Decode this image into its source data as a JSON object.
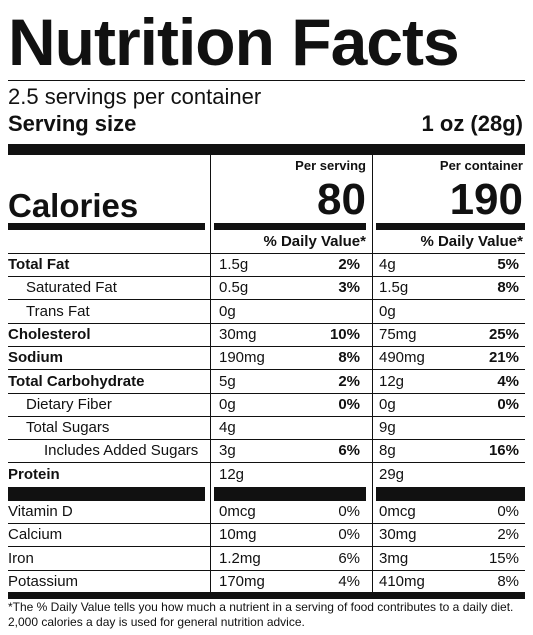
{
  "title": "Nutrition Facts",
  "servings_per_container": "2.5 servings per container",
  "serving_size_label": "Serving size",
  "serving_size_value": "1 oz (28g)",
  "per_serving_label": "Per serving",
  "per_container_label": "Per container",
  "calories_label": "Calories",
  "calories_per_serving": "80",
  "calories_per_container": "190",
  "daily_value_header": "% Daily Value*",
  "nutrients": [
    {
      "name": "Total Fat",
      "bold": true,
      "indent": 0,
      "serving_amt": "1.5g",
      "serving_pct": "2%",
      "container_amt": "4g",
      "container_pct": "5%"
    },
    {
      "name": "Saturated Fat",
      "bold": false,
      "indent": 1,
      "serving_amt": "0.5g",
      "serving_pct": "3%",
      "container_amt": "1.5g",
      "container_pct": "8%"
    },
    {
      "name": "Trans Fat",
      "bold": false,
      "indent": 1,
      "serving_amt": "0g",
      "serving_pct": "",
      "container_amt": "0g",
      "container_pct": ""
    },
    {
      "name": "Cholesterol",
      "bold": true,
      "indent": 0,
      "serving_amt": "30mg",
      "serving_pct": "10%",
      "container_amt": "75mg",
      "container_pct": "25%"
    },
    {
      "name": "Sodium",
      "bold": true,
      "indent": 0,
      "serving_amt": "190mg",
      "serving_pct": "8%",
      "container_amt": "490mg",
      "container_pct": "21%"
    },
    {
      "name": "Total Carbohydrate",
      "bold": true,
      "indent": 0,
      "serving_amt": "5g",
      "serving_pct": "2%",
      "container_amt": "12g",
      "container_pct": "4%"
    },
    {
      "name": "Dietary Fiber",
      "bold": false,
      "indent": 1,
      "serving_amt": "0g",
      "serving_pct": "0%",
      "container_amt": "0g",
      "container_pct": "0%"
    },
    {
      "name": "Total Sugars",
      "bold": false,
      "indent": 1,
      "serving_amt": "4g",
      "serving_pct": "",
      "container_amt": "9g",
      "container_pct": ""
    },
    {
      "name": "Includes Added Sugars",
      "bold": false,
      "indent": 2,
      "serving_amt": "3g",
      "serving_pct": "6%",
      "container_amt": "8g",
      "container_pct": "16%"
    },
    {
      "name": "Protein",
      "bold": true,
      "indent": 0,
      "serving_amt": "12g",
      "serving_pct": "",
      "container_amt": "29g",
      "container_pct": ""
    }
  ],
  "vitamins": [
    {
      "name": "Vitamin D",
      "serving_amt": "0mcg",
      "serving_pct": "0%",
      "container_amt": "0mcg",
      "container_pct": "0%"
    },
    {
      "name": "Calcium",
      "serving_amt": "10mg",
      "serving_pct": "0%",
      "container_amt": "30mg",
      "container_pct": "2%"
    },
    {
      "name": "Iron",
      "serving_amt": "1.2mg",
      "serving_pct": "6%",
      "container_amt": "3mg",
      "container_pct": "15%"
    },
    {
      "name": "Potassium",
      "serving_amt": "170mg",
      "serving_pct": "4%",
      "container_amt": "410mg",
      "container_pct": "8%"
    }
  ],
  "footnote": "*The % Daily Value tells you how much a nutrient in a serving of food contributes to a daily diet. 2,000 calories a day is used for general nutrition advice."
}
